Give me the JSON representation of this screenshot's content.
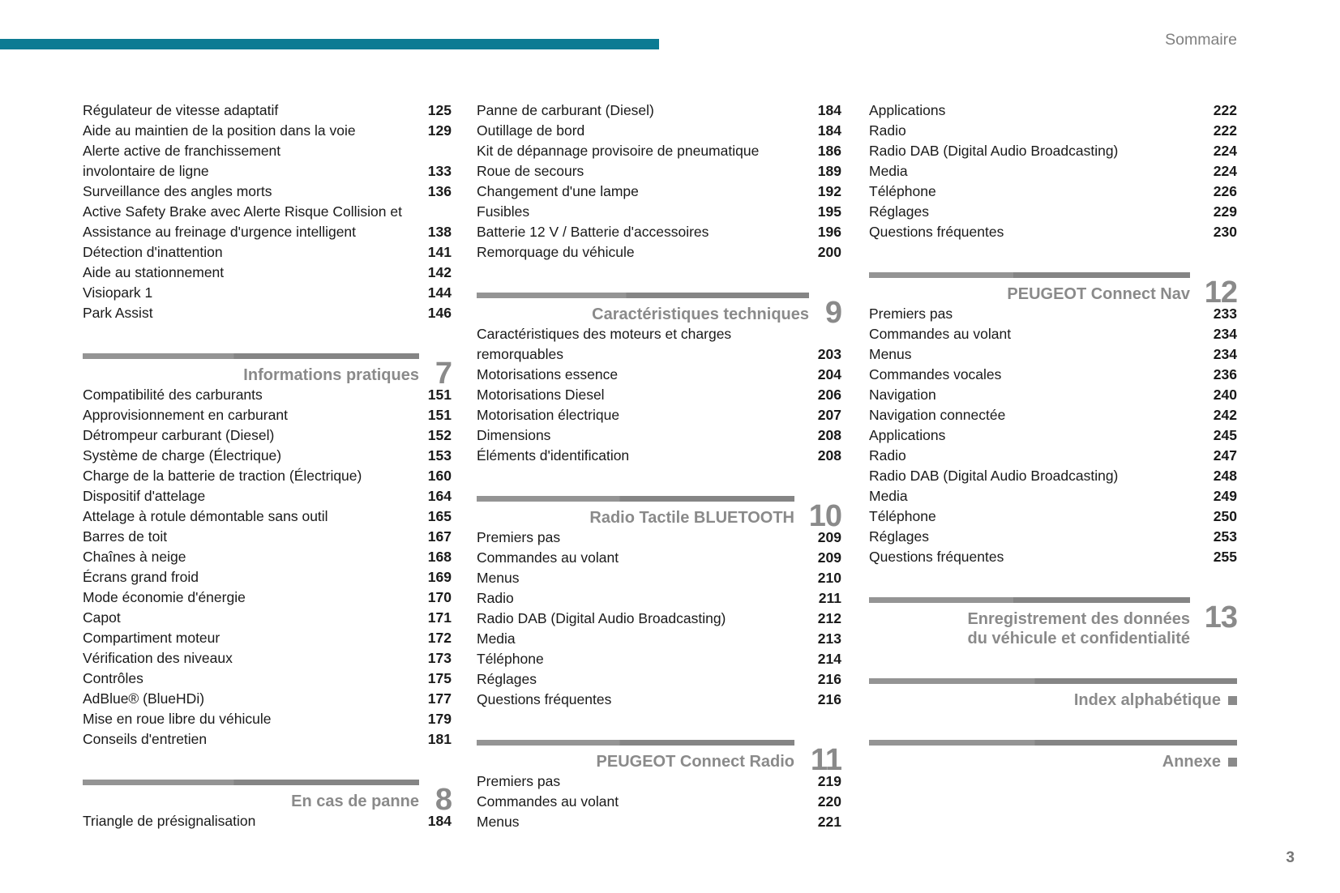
{
  "header": {
    "label": "Sommaire"
  },
  "footer": {
    "page_number": "3"
  },
  "colors": {
    "accent_teal": "#0c7b93",
    "heading_gray": "#8a8a8a",
    "text": "#1a1a1a"
  },
  "columns": [
    {
      "blocks": [
        {
          "type": "entries",
          "items": [
            {
              "label": "Régulateur de vitesse adaptatif",
              "page": "125"
            },
            {
              "label": "Aide au maintien de la position dans la voie",
              "page": "129"
            },
            {
              "label": "Alerte active de franchissement",
              "page": ""
            },
            {
              "label": "involontaire de ligne",
              "page": "133"
            },
            {
              "label": "Surveillance des angles morts",
              "page": "136"
            },
            {
              "label": "Active Safety Brake avec Alerte Risque Collision et",
              "page": ""
            },
            {
              "label": "Assistance au freinage d'urgence intelligent",
              "page": "138"
            },
            {
              "label": "Détection d'inattention",
              "page": "141"
            },
            {
              "label": "Aide au stationnement",
              "page": "142"
            },
            {
              "label": "Visiopark 1",
              "page": "144"
            },
            {
              "label": "Park Assist",
              "page": "146"
            }
          ]
        },
        {
          "type": "section",
          "title_lines": [
            "Informations pratiques"
          ],
          "number": "7"
        },
        {
          "type": "entries",
          "items": [
            {
              "label": "Compatibilité des carburants",
              "page": "151"
            },
            {
              "label": "Approvisionnement en carburant",
              "page": "151"
            },
            {
              "label": "Détrompeur carburant (Diesel)",
              "page": "152"
            },
            {
              "label": "Système de charge (Électrique)",
              "page": "153"
            },
            {
              "label": "Charge de la batterie de traction (Électrique)",
              "page": "160"
            },
            {
              "label": "Dispositif d'attelage",
              "page": "164"
            },
            {
              "label": "Attelage à rotule démontable sans outil",
              "page": "165"
            },
            {
              "label": "Barres de toit",
              "page": "167"
            },
            {
              "label": "Chaînes à neige",
              "page": "168"
            },
            {
              "label": "Écrans grand froid",
              "page": "169"
            },
            {
              "label": "Mode économie d'énergie",
              "page": "170"
            },
            {
              "label": "Capot",
              "page": "171"
            },
            {
              "label": "Compartiment moteur",
              "page": "172"
            },
            {
              "label": "Vérification des niveaux",
              "page": "173"
            },
            {
              "label": "Contrôles",
              "page": "175"
            },
            {
              "label": "AdBlue® (BlueHDi)",
              "page": "177"
            },
            {
              "label": "Mise en roue libre du véhicule",
              "page": "179"
            },
            {
              "label": "Conseils d'entretien",
              "page": "181"
            }
          ]
        },
        {
          "type": "section",
          "title_lines": [
            "En cas de panne"
          ],
          "number": "8"
        },
        {
          "type": "entries",
          "items": [
            {
              "label": "Triangle de présignalisation",
              "page": "184"
            }
          ]
        }
      ]
    },
    {
      "blocks": [
        {
          "type": "entries",
          "items": [
            {
              "label": "Panne de carburant (Diesel)",
              "page": "184"
            },
            {
              "label": "Outillage de bord",
              "page": "184"
            },
            {
              "label": "Kit de dépannage provisoire de pneumatique",
              "page": "186"
            },
            {
              "label": "Roue de secours",
              "page": "189"
            },
            {
              "label": "Changement d'une lampe",
              "page": "192"
            },
            {
              "label": "Fusibles",
              "page": "195"
            },
            {
              "label": "Batterie 12 V / Batterie d'accessoires",
              "page": "196"
            },
            {
              "label": "Remorquage du véhicule",
              "page": "200"
            }
          ]
        },
        {
          "type": "section",
          "title_lines": [
            "Caractéristiques techniques"
          ],
          "number": "9"
        },
        {
          "type": "entries",
          "items": [
            {
              "label": "Caractéristiques des moteurs et charges",
              "page": ""
            },
            {
              "label": "remorquables",
              "page": "203"
            },
            {
              "label": "Motorisations essence",
              "page": "204"
            },
            {
              "label": "Motorisations Diesel",
              "page": "206"
            },
            {
              "label": "Motorisation électrique",
              "page": "207"
            },
            {
              "label": "Dimensions",
              "page": "208"
            },
            {
              "label": "Éléments d'identification",
              "page": "208"
            }
          ]
        },
        {
          "type": "section",
          "title_lines": [
            "Radio Tactile BLUETOOTH"
          ],
          "number": "10"
        },
        {
          "type": "entries",
          "items": [
            {
              "label": "Premiers pas",
              "page": "209"
            },
            {
              "label": "Commandes au volant",
              "page": "209"
            },
            {
              "label": "Menus",
              "page": "210"
            },
            {
              "label": "Radio",
              "page": "211"
            },
            {
              "label": "Radio DAB (Digital Audio Broadcasting)",
              "page": "212"
            },
            {
              "label": "Media",
              "page": "213"
            },
            {
              "label": "Téléphone",
              "page": "214"
            },
            {
              "label": "Réglages",
              "page": "216"
            },
            {
              "label": "Questions fréquentes",
              "page": "216"
            }
          ]
        },
        {
          "type": "section",
          "title_lines": [
            "PEUGEOT Connect Radio"
          ],
          "number": "11"
        },
        {
          "type": "entries",
          "items": [
            {
              "label": "Premiers pas",
              "page": "219"
            },
            {
              "label": "Commandes au volant",
              "page": "220"
            },
            {
              "label": "Menus",
              "page": "221"
            }
          ]
        }
      ]
    },
    {
      "blocks": [
        {
          "type": "entries",
          "items": [
            {
              "label": "Applications",
              "page": "222"
            },
            {
              "label": "Radio",
              "page": "222"
            },
            {
              "label": "Radio DAB (Digital Audio Broadcasting)",
              "page": "224"
            },
            {
              "label": "Media",
              "page": "224"
            },
            {
              "label": "Téléphone",
              "page": "226"
            },
            {
              "label": "Réglages",
              "page": "229"
            },
            {
              "label": "Questions fréquentes",
              "page": "230"
            }
          ]
        },
        {
          "type": "section",
          "title_lines": [
            "PEUGEOT Connect Nav"
          ],
          "number": "12"
        },
        {
          "type": "entries",
          "items": [
            {
              "label": "Premiers pas",
              "page": "233"
            },
            {
              "label": "Commandes au volant",
              "page": "234"
            },
            {
              "label": "Menus",
              "page": "234"
            },
            {
              "label": "Commandes vocales",
              "page": "236"
            },
            {
              "label": "Navigation",
              "page": "240"
            },
            {
              "label": "Navigation connectée",
              "page": "242"
            },
            {
              "label": "Applications",
              "page": "245"
            },
            {
              "label": "Radio",
              "page": "247"
            },
            {
              "label": "Radio DAB (Digital Audio Broadcasting)",
              "page": "248"
            },
            {
              "label": "Media",
              "page": "249"
            },
            {
              "label": "Téléphone",
              "page": "250"
            },
            {
              "label": "Réglages",
              "page": "253"
            },
            {
              "label": "Questions fréquentes",
              "page": "255"
            }
          ]
        },
        {
          "type": "section",
          "title_lines": [
            "Enregistrement des données",
            "du véhicule et confidentialité"
          ],
          "number": "13"
        },
        {
          "type": "section",
          "title_lines": [
            "Index alphabétique"
          ],
          "marker": "square"
        },
        {
          "type": "section",
          "title_lines": [
            "Annexe"
          ],
          "marker": "square"
        }
      ]
    }
  ]
}
